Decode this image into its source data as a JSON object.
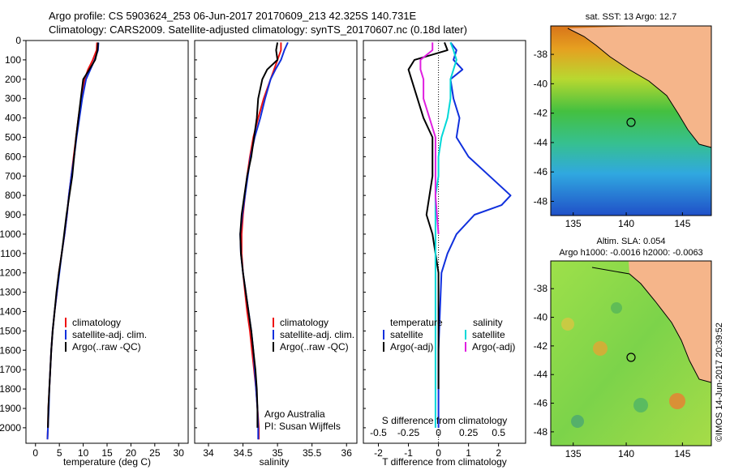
{
  "header": {
    "line1": "Argo profile: CS 5903624_253 06-Jun-2017 20170609_213 42.325S 140.731E",
    "line2": "Climatology: CARS2009. Satellite-adjusted climatology: synTS_20170607.nc (0.18d later)"
  },
  "colors": {
    "climatology": "#ee1111",
    "satellite": "#1030dd",
    "argo": "#000000",
    "sat_salinity": "#00d8d8",
    "argo_adj_salinity": "#e020e0"
  },
  "chart_data": [
    {
      "type": "line",
      "id": "temperature-profile",
      "xlabel": "temperature (deg C)",
      "xlim": [
        -2,
        32
      ],
      "xticks": [
        0,
        5,
        10,
        15,
        20,
        25,
        30
      ],
      "ylim": [
        0,
        2080
      ],
      "yticks": [
        0,
        100,
        200,
        300,
        400,
        500,
        600,
        700,
        800,
        900,
        1000,
        1100,
        1200,
        1300,
        1400,
        1500,
        1600,
        1700,
        1800,
        1900,
        2000
      ],
      "legend": [
        "climatology",
        "satellite-adj. clim.",
        "Argo(..raw -QC)"
      ],
      "series": [
        {
          "name": "climatology",
          "color_key": "climatology",
          "x": [
            12.9,
            12.8,
            12.0,
            11.0,
            10.3,
            9.6,
            9.0,
            8.5,
            8.0,
            7.5,
            7.0,
            6.6,
            6.1,
            5.5,
            4.9,
            4.5,
            4.0,
            3.6,
            3.3,
            3.1,
            2.9,
            2.7,
            2.6,
            2.5
          ],
          "y": [
            10,
            50,
            100,
            150,
            200,
            300,
            400,
            500,
            600,
            700,
            800,
            900,
            1000,
            1100,
            1200,
            1300,
            1400,
            1500,
            1600,
            1700,
            1800,
            1900,
            2000,
            2060
          ]
        },
        {
          "name": "satellite-adj. clim.",
          "color_key": "satellite",
          "x": [
            13.2,
            13.1,
            12.4,
            11.5,
            10.6,
            9.8,
            9.2,
            8.6,
            8.1,
            7.5,
            7.0,
            6.6,
            6.1,
            5.5,
            5.0,
            4.5,
            4.0,
            3.6,
            3.3,
            3.1,
            2.9,
            2.8,
            2.6,
            2.5
          ],
          "y": [
            10,
            50,
            100,
            150,
            200,
            300,
            400,
            500,
            600,
            700,
            800,
            900,
            1000,
            1100,
            1200,
            1300,
            1400,
            1500,
            1600,
            1700,
            1800,
            1900,
            2000,
            2060
          ]
        },
        {
          "name": "Argo(..raw -QC)",
          "color_key": "argo",
          "x": [
            13.1,
            13.0,
            12.5,
            11.3,
            10.0,
            9.5,
            9.0,
            8.5,
            8.1,
            7.7,
            7.1,
            6.5,
            6.0,
            5.5,
            4.9,
            4.4,
            4.0,
            3.6,
            3.3,
            3.1,
            2.9,
            2.7,
            2.6
          ],
          "y": [
            10,
            50,
            100,
            150,
            200,
            300,
            400,
            500,
            600,
            700,
            800,
            900,
            1000,
            1100,
            1200,
            1300,
            1400,
            1500,
            1600,
            1700,
            1800,
            1900,
            2000
          ]
        }
      ]
    },
    {
      "type": "line",
      "id": "salinity-profile",
      "xlabel": "salinity",
      "xlim": [
        33.8,
        36.15
      ],
      "xticks": [
        34,
        34.5,
        35,
        35.5,
        36
      ],
      "ylim": [
        0,
        2080
      ],
      "legend": [
        "climatology",
        "satellite-adj. clim.",
        "Argo(..raw -QC)"
      ],
      "annotations": [
        "Argo Australia",
        "PI: Susan Wijffels"
      ],
      "series": [
        {
          "name": "climatology",
          "color_key": "climatology",
          "x": [
            35.05,
            35.05,
            35.0,
            34.95,
            34.9,
            34.8,
            34.72,
            34.65,
            34.6,
            34.56,
            34.53,
            34.5,
            34.48,
            34.48,
            34.5,
            34.53,
            34.56,
            34.6,
            34.63,
            34.66,
            34.69,
            34.71,
            34.73,
            34.73
          ],
          "y": [
            10,
            50,
            100,
            150,
            200,
            300,
            400,
            500,
            600,
            700,
            800,
            900,
            1000,
            1100,
            1200,
            1300,
            1400,
            1500,
            1600,
            1700,
            1800,
            1900,
            2000,
            2060
          ]
        },
        {
          "name": "satellite-adj. clim.",
          "color_key": "satellite",
          "x": [
            35.15,
            35.1,
            35.05,
            34.97,
            34.9,
            34.82,
            34.75,
            34.67,
            34.61,
            34.57,
            34.53,
            34.49,
            34.46,
            34.47,
            34.5,
            34.54,
            34.58,
            34.62,
            34.65,
            34.67,
            34.69,
            34.71,
            34.72,
            34.72
          ],
          "y": [
            10,
            50,
            100,
            150,
            200,
            300,
            400,
            500,
            600,
            700,
            800,
            900,
            1000,
            1100,
            1200,
            1300,
            1400,
            1500,
            1600,
            1700,
            1800,
            1900,
            2000,
            2060
          ]
        },
        {
          "name": "Argo(..raw -QC)",
          "color_key": "argo",
          "x": [
            35.0,
            34.98,
            35.0,
            34.85,
            34.78,
            34.72,
            34.7,
            34.66,
            34.62,
            34.56,
            34.52,
            34.48,
            34.46,
            34.47,
            34.5,
            34.54,
            34.58,
            34.62,
            34.65,
            34.68,
            34.7,
            34.71,
            34.71
          ],
          "y": [
            10,
            50,
            100,
            150,
            200,
            300,
            400,
            500,
            600,
            700,
            800,
            900,
            1000,
            1100,
            1200,
            1300,
            1400,
            1500,
            1600,
            1700,
            1800,
            1900,
            2000
          ]
        }
      ]
    },
    {
      "type": "line",
      "id": "difference-profile",
      "xlabel": "T difference from climatology",
      "x2label": "S difference from climatology",
      "xlim": [
        -2.5,
        2.9
      ],
      "xticks": [
        -2,
        -1,
        0,
        1,
        2
      ],
      "x2ticks": [
        "-0.5",
        "-0.25",
        "0",
        "0.25",
        "0.5"
      ],
      "x2tick_positions_in_T_units": [
        -2,
        -1,
        0,
        1,
        2
      ],
      "ylim": [
        0,
        2080
      ],
      "legend": {
        "temperature_title": "temperature",
        "salinity_title": "salinity",
        "temperature_items": [
          "satellite",
          "Argo(-adj)"
        ],
        "salinity_items": [
          "satellite",
          "Argo(-adj)"
        ]
      },
      "series": [
        {
          "name": "temperature satellite",
          "color_key": "satellite",
          "x": [
            0.4,
            0.6,
            0.5,
            0.8,
            0.4,
            0.5,
            0.7,
            0.6,
            1.0,
            1.7,
            2.4,
            2.1,
            1.2,
            0.6,
            0.3,
            0.1,
            0.05,
            0.0,
            0.0,
            0.0,
            0.0,
            0.0
          ],
          "y": [
            10,
            50,
            100,
            150,
            200,
            300,
            400,
            500,
            600,
            700,
            800,
            850,
            900,
            1000,
            1100,
            1200,
            1400,
            1600,
            1700,
            1800,
            1900,
            2000
          ]
        },
        {
          "name": "temperature Argo(-adj)",
          "color_key": "argo",
          "x": [
            0.2,
            0.3,
            -0.8,
            -1.0,
            -0.9,
            -0.7,
            -0.5,
            -0.2,
            -0.2,
            -0.2,
            -0.3,
            -0.4,
            -0.2,
            -0.1,
            0.0,
            0.0,
            0.0,
            0.0
          ],
          "y": [
            10,
            50,
            100,
            150,
            200,
            300,
            400,
            500,
            600,
            700,
            800,
            900,
            1000,
            1100,
            1200,
            1400,
            1600,
            1800
          ]
        },
        {
          "name": "salinity satellite",
          "color_key": "sat_salinity",
          "x": [
            0.4,
            0.5,
            0.6,
            0.5,
            0.4,
            0.4,
            0.3,
            0.1,
            0.0,
            0.0,
            -0.1,
            -0.1,
            -0.1,
            -0.1,
            -0.1,
            -0.1,
            -0.1,
            -0.1,
            -0.1
          ],
          "y": [
            10,
            50,
            100,
            150,
            200,
            300,
            400,
            500,
            600,
            700,
            800,
            1000,
            1200,
            1400,
            1600,
            1700,
            1800,
            1900,
            2000
          ]
        },
        {
          "name": "salinity Argo(-adj)",
          "color_key": "argo_adj_salinity",
          "x": [
            -0.2,
            -0.2,
            -0.6,
            -0.6,
            -0.5,
            -0.5,
            -0.3,
            -0.1,
            -0.1,
            -0.1,
            -0.1,
            -0.05,
            0.0
          ],
          "y": [
            10,
            50,
            100,
            150,
            200,
            300,
            400,
            500,
            600,
            700,
            800,
            900,
            1000
          ]
        }
      ]
    }
  ],
  "maps": {
    "sst": {
      "title": "sat. SST: 13 Argo: 12.7",
      "lon_ticks": [
        "135",
        "140",
        "145"
      ],
      "lat_ticks": [
        "-38",
        "-40",
        "-42",
        "-44",
        "-46",
        "-48"
      ]
    },
    "sla": {
      "title_line1": "Altim. SLA: 0.054",
      "title_line2": "Argo h1000: -0.0016 h2000: -0.0063",
      "lon_ticks": [
        "135",
        "140",
        "145"
      ],
      "lat_ticks": [
        "-38",
        "-40",
        "-42",
        "-44",
        "-46",
        "-48"
      ]
    }
  },
  "footer": {
    "stamp": "©IMOS 14-Jun-2017 20:39:52"
  }
}
